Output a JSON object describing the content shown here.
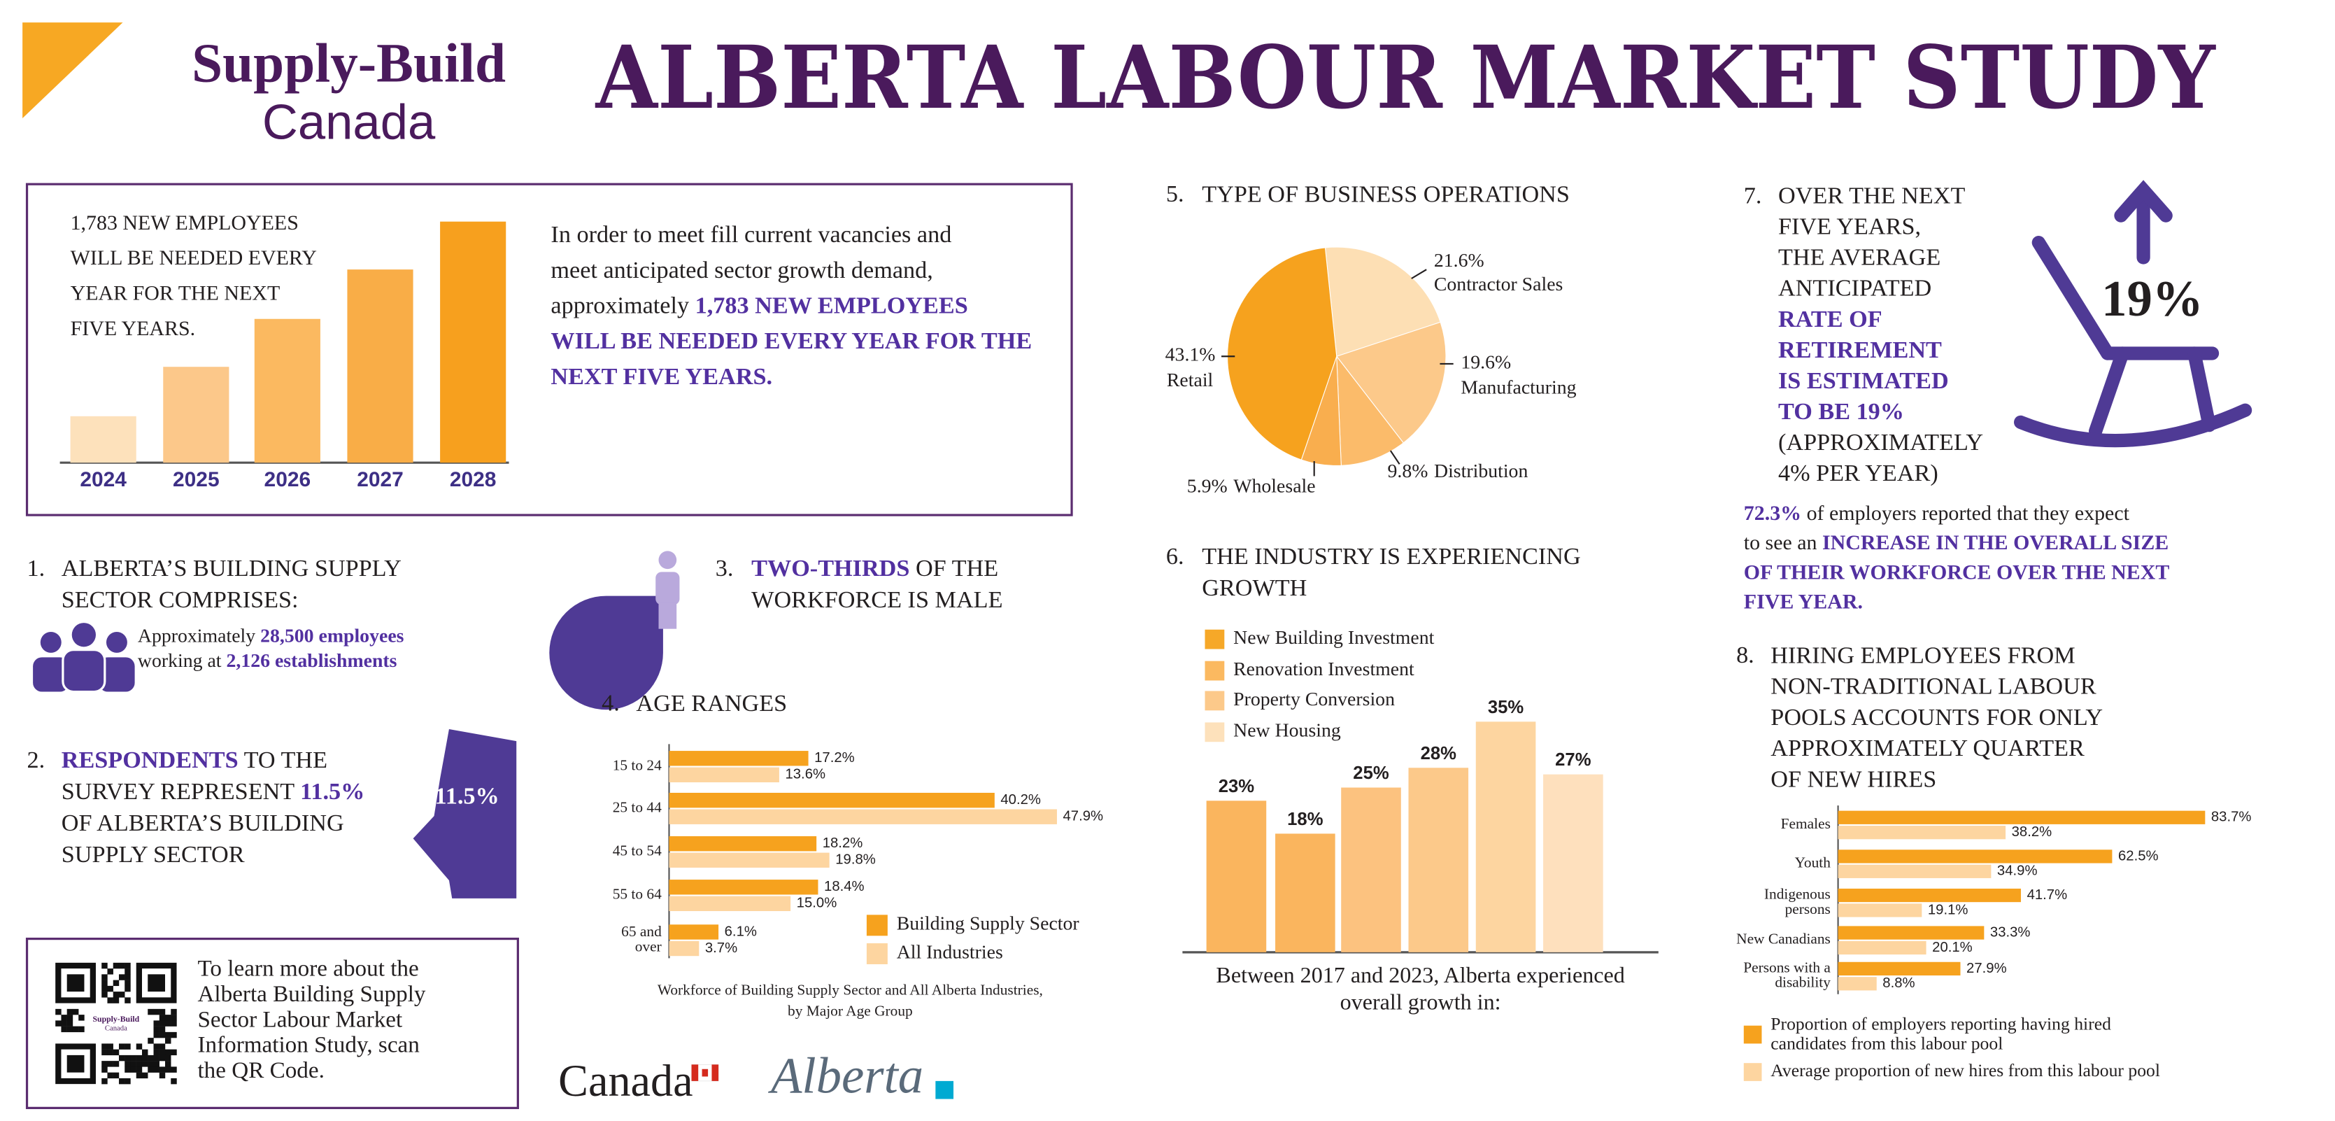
{
  "header": {
    "brand": [
      "Supply-Build",
      "Canada"
    ],
    "title": "ALBERTA LABOUR MARKET STUDY"
  },
  "intro": {
    "text": [
      "In order to meet fill current vacancies and",
      "meet anticipated sector growth demand,",
      [
        "approximately ",
        {
          "text": "1,783 NEW EMPLOYEES",
          "color": "#5230a0"
        }
      ],
      [
        {
          "text": "WILL BE NEEDED EVERY YEAR FOR THE",
          "color": "#5230a0"
        }
      ],
      [
        {
          "text": "NEXT FIVE YEARS.",
          "color": "#5230a0"
        }
      ]
    ]
  },
  "sections": [
    {
      "number": "1.",
      "heading": [
        "ALBERTA’S BUILDING SUPPLY",
        "SECTOR COMPRISES:"
      ],
      "text": [
        [
          "Approximately ",
          {
            "text": "28,500 employees",
            "color": "#5230a0"
          }
        ],
        [
          "working at ",
          {
            "text": "2,126 establishments",
            "color": "#5230a0"
          }
        ]
      ]
    },
    {
      "number": "2.",
      "text": [
        [
          {
            "text": "RESPONDENTS",
            "color": "#5230a0"
          },
          " TO THE"
        ],
        [
          "SURVEY REPRESENT ",
          {
            "text": "11.5%",
            "color": "#5230a0"
          }
        ],
        "OF ALBERTA’S BUILDING",
        "SUPPLY SECTOR"
      ],
      "map_label": "11.5%"
    },
    {
      "number": "3.",
      "text": [
        [
          {
            "text": "TWO-THIRDS",
            "color": "#5230a0"
          },
          " OF THE"
        ],
        "WORKFORCE IS MALE"
      ]
    },
    {
      "number": "7.",
      "text": [
        "OVER THE NEXT",
        "FIVE YEARS,",
        "THE AVERAGE",
        "ANTICIPATED",
        [
          {
            "text": "RATE OF",
            "color": "#5230a0"
          }
        ],
        [
          {
            "text": "RETIREMENT",
            "color": "#5230a0"
          }
        ],
        [
          {
            "text": "IS ESTIMATED",
            "color": "#5230a0"
          }
        ],
        [
          {
            "text": "TO BE 19%",
            "color": "#5230a0"
          }
        ],
        "(APPROXIMATELY",
        "4% PER YEAR)"
      ],
      "figure": "19%",
      "note": [
        [
          {
            "text": "72.3%",
            "color": "#5230a0"
          },
          " of employers reported that they expect"
        ],
        [
          "to see an ",
          {
            "text": "INCREASE IN THE OVERALL SIZE",
            "color": "#5230a0"
          }
        ],
        [
          {
            "text": "OF THEIR WORKFORCE OVER THE NEXT",
            "color": "#5230a0"
          }
        ],
        [
          {
            "text": "FIVE YEAR.",
            "color": "#5230a0"
          }
        ]
      ]
    }
  ],
  "qr": {
    "text": [
      "To learn more about the",
      "Alberta Building Supply",
      "Sector Labour Market",
      "Information Study, scan",
      "the QR Code."
    ],
    "logo": [
      "Supply-Build",
      "Canada"
    ]
  },
  "logos": {
    "canada": "Canada",
    "alberta": "Alberta"
  },
  "chart_data": [
    {
      "type": "bar",
      "title": [
        "1,783 NEW EMPLOYEES",
        "WILL BE NEEDED EVERY",
        "YEAR FOR THE NEXT",
        "FIVE YEARS."
      ],
      "categories": [
        "2024",
        "2025",
        "2026",
        "2027",
        "2028"
      ],
      "values": [
        31,
        64,
        96,
        129,
        161
      ],
      "colors": [
        "#fde1bb",
        "#fcc88a",
        "#fbb960",
        "#f9ad47",
        "#f7a01e"
      ]
    },
    {
      "type": "pie",
      "number": "5.",
      "title": "TYPE OF BUSINESS OPERATIONS",
      "categories": [
        "Contractor Sales",
        "Manufacturing",
        "Distribution",
        "Wholesale",
        "Retail"
      ],
      "values": [
        21.6,
        19.6,
        9.8,
        5.9,
        43.1
      ],
      "value_labels": [
        "21.6%",
        "19.6%",
        "9.8%",
        "5.9%",
        "43.1%"
      ],
      "colors": [
        "#fddfb4",
        "#fcc98a",
        "#fbbb6a",
        "#f9ae4e",
        "#f6a21e"
      ]
    },
    {
      "type": "hbar",
      "number": "4.",
      "title": "AGE RANGES",
      "categories": [
        "15 to 24",
        "25 to 44",
        "45 to 54",
        "55 to 64",
        [
          "65 and",
          "over"
        ]
      ],
      "series": [
        {
          "name": "Building Supply Sector",
          "color": "#f6a21e",
          "values": [
            17.2,
            40.2,
            18.2,
            18.4,
            6.1
          ],
          "value_labels": [
            "17.2%",
            "40.2%",
            "18.2%",
            "18.4%",
            "6.1%"
          ]
        },
        {
          "name": "All Industries",
          "color": "#fdd5a0",
          "values": [
            13.6,
            47.9,
            19.8,
            15.0,
            3.7
          ],
          "value_labels": [
            "13.6%",
            "47.9%",
            "19.8%",
            "15.0%",
            "3.7%"
          ]
        }
      ],
      "caption": [
        "Workforce of Building Supply Sector and All Alberta Industries,",
        "by Major Age Group"
      ]
    },
    {
      "type": "bar",
      "number": "6.",
      "title": [
        "THE INDUSTRY IS EXPERIENCING",
        "GROWTH"
      ],
      "legend": [
        {
          "name": "New Building Investment",
          "color": "#f6a828"
        },
        {
          "name": "Renovation Investment",
          "color": "#fbb960"
        },
        {
          "name": "Property Conversion",
          "color": "#fcc98a"
        },
        {
          "name": "New Housing",
          "color": "#fde1bb"
        }
      ],
      "categories": [
        null,
        null,
        null,
        null,
        null,
        null
      ],
      "values": [
        23,
        18,
        25,
        28,
        35,
        27
      ],
      "value_labels": [
        "23%",
        "18%",
        "25%",
        "28%",
        "35%",
        "27%"
      ],
      "colors": [
        "#fab55e",
        "#fab55e",
        "#fcc27f",
        "#fcc98a",
        "#fdd5a0",
        "#fee0bd"
      ],
      "caption": [
        "Between 2017 and 2023, Alberta experienced",
        "overall growth in:"
      ]
    },
    {
      "type": "hbar",
      "number": "8.",
      "title": [
        "HIRING EMPLOYEES FROM",
        "NON-TRADITIONAL LABOUR",
        "POOLS ACCOUNTS FOR ONLY",
        "APPROXIMATELY QUARTER",
        "OF NEW HIRES"
      ],
      "categories": [
        "Females",
        "Youth",
        [
          "Indigenous",
          "persons"
        ],
        "New Canadians",
        [
          "Persons with a",
          "disability"
        ]
      ],
      "series": [
        {
          "name": [
            "Proportion of employers reporting having hired",
            "candidates from this labour pool"
          ],
          "color": "#f6a21e",
          "values": [
            83.7,
            62.5,
            41.7,
            33.3,
            27.9
          ],
          "value_labels": [
            "83.7%",
            "62.5%",
            "41.7%",
            "33.3%",
            "27.9%"
          ]
        },
        {
          "name": "Average proportion of new hires from this labour pool",
          "color": "#fdd5a0",
          "values": [
            38.2,
            34.9,
            19.1,
            20.1,
            8.8
          ],
          "value_labels": [
            "38.2%",
            "34.9%",
            "19.1%",
            "20.1%",
            "8.8%"
          ]
        }
      ]
    }
  ]
}
